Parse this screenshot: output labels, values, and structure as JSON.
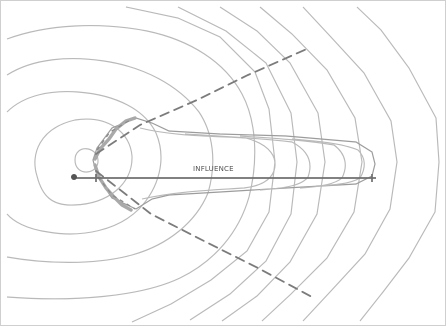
{
  "diagram": {
    "center_label": "INFLUENCE",
    "colors": {
      "background": "#ffffff",
      "border": "#cfcfcf",
      "contours": "#b9b9b9",
      "dashed_lines": "#7b7b7b",
      "axis": "#6f6f6f",
      "source_point": "#555555"
    }
  }
}
